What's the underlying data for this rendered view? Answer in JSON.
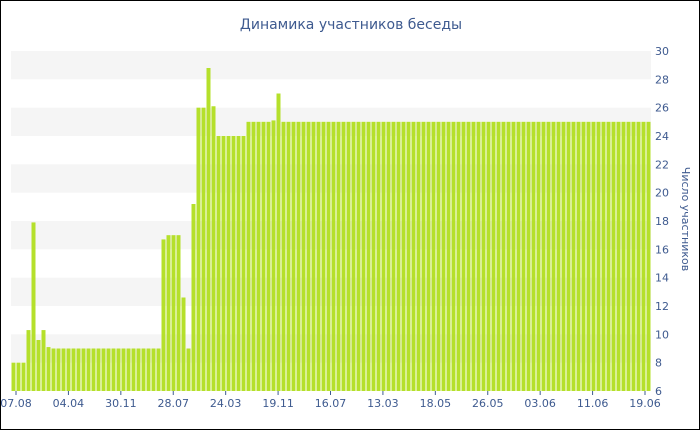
{
  "chart_data": {
    "type": "bar",
    "title": "Динамика участников беседы",
    "xlabel": "",
    "ylabel": "Число участников",
    "ylim": [
      6,
      30
    ],
    "yticks": [
      6,
      8,
      10,
      12,
      14,
      16,
      18,
      20,
      22,
      24,
      26,
      28,
      30
    ],
    "x_tick_labels": [
      "07.08",
      "04.04",
      "30.11",
      "28.07",
      "24.03",
      "19.11",
      "16.07",
      "13.03",
      "18.05",
      "26.05",
      "03.06",
      "11.06",
      "19.06"
    ],
    "grid": "alternating horizontal bands",
    "y_axis_position": "right",
    "colors": {
      "bar": "#b5e02b",
      "band": "#f5f5f5",
      "text": "#3e5a8f",
      "frame": "#000000"
    },
    "series": [
      {
        "values": [
          8,
          8,
          8,
          10.3,
          17.9,
          9.6,
          10.3,
          9.1,
          9,
          9,
          9,
          9,
          9,
          9,
          9,
          9,
          9,
          9,
          9,
          9,
          9,
          9,
          9,
          9,
          9,
          9,
          9,
          9,
          9,
          9,
          16.7,
          17,
          17,
          17,
          12.6,
          9,
          19.2,
          26,
          26,
          28.8,
          26.1,
          24,
          24,
          24,
          24,
          24,
          24,
          25,
          25,
          25,
          25,
          25,
          25.1,
          27,
          25,
          25,
          25,
          25,
          25,
          25,
          25,
          25,
          25,
          25,
          25,
          25,
          25,
          25,
          25,
          25,
          25,
          25,
          25,
          25,
          25,
          25,
          25,
          25,
          25,
          25,
          25,
          25,
          25,
          25,
          25,
          25,
          25,
          25,
          25,
          25,
          25,
          25,
          25,
          25,
          25,
          25,
          25,
          25,
          25,
          25,
          25,
          25,
          25,
          25,
          25,
          25,
          25,
          25,
          25,
          25,
          25,
          25,
          25,
          25,
          25,
          25,
          25,
          25,
          25,
          25,
          25,
          25,
          25,
          25,
          25,
          25,
          25,
          25
        ]
      }
    ]
  }
}
